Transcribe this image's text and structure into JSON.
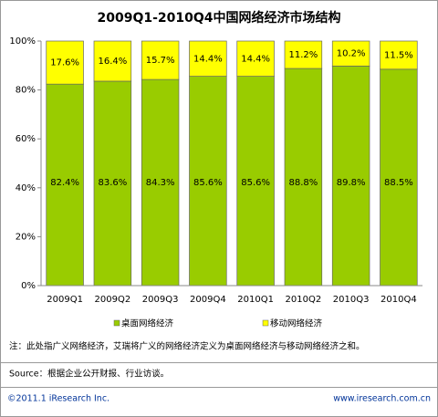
{
  "chart_data": {
    "type": "stacked_bar",
    "title": "2009Q1-2010Q4中国网络经济市场结构",
    "categories": [
      "2009Q1",
      "2009Q2",
      "2009Q3",
      "2009Q4",
      "2010Q1",
      "2010Q2",
      "2010Q3",
      "2010Q4"
    ],
    "series": [
      {
        "name": "桌面网络经济",
        "color": "#99cc00",
        "values": [
          82.4,
          83.6,
          84.3,
          85.6,
          85.6,
          88.8,
          89.8,
          88.5
        ],
        "value_labels": [
          "82.4%",
          "83.6%",
          "84.3%",
          "85.6%",
          "85.6%",
          "88.8%",
          "89.8%",
          "88.5%"
        ]
      },
      {
        "name": "移动网络经济",
        "color": "#ffff00",
        "values": [
          17.6,
          16.4,
          15.7,
          14.4,
          14.4,
          11.2,
          10.2,
          11.5
        ],
        "value_labels": [
          "17.6%",
          "16.4%",
          "15.7%",
          "14.4%",
          "14.4%",
          "11.2%",
          "10.2%",
          "11.5%"
        ]
      }
    ],
    "ylim": [
      0,
      100
    ],
    "yticks": [
      {
        "value": 0,
        "label": "0%"
      },
      {
        "value": 20,
        "label": "20%"
      },
      {
        "value": 40,
        "label": "40%"
      },
      {
        "value": 60,
        "label": "60%"
      },
      {
        "value": 80,
        "label": "80%"
      },
      {
        "value": 100,
        "label": "100%"
      }
    ],
    "grid": false,
    "legend": "bottom"
  },
  "note": "注：此处指广义网络经济，艾瑞将广义的网络经济定义为桌面网络经济与移动网络经济之和。",
  "source": "Source：根据企业公开财报、行业访谈。",
  "copyright": "©2011.1 iResearch Inc.",
  "website": "www.iresearch.com.cn"
}
